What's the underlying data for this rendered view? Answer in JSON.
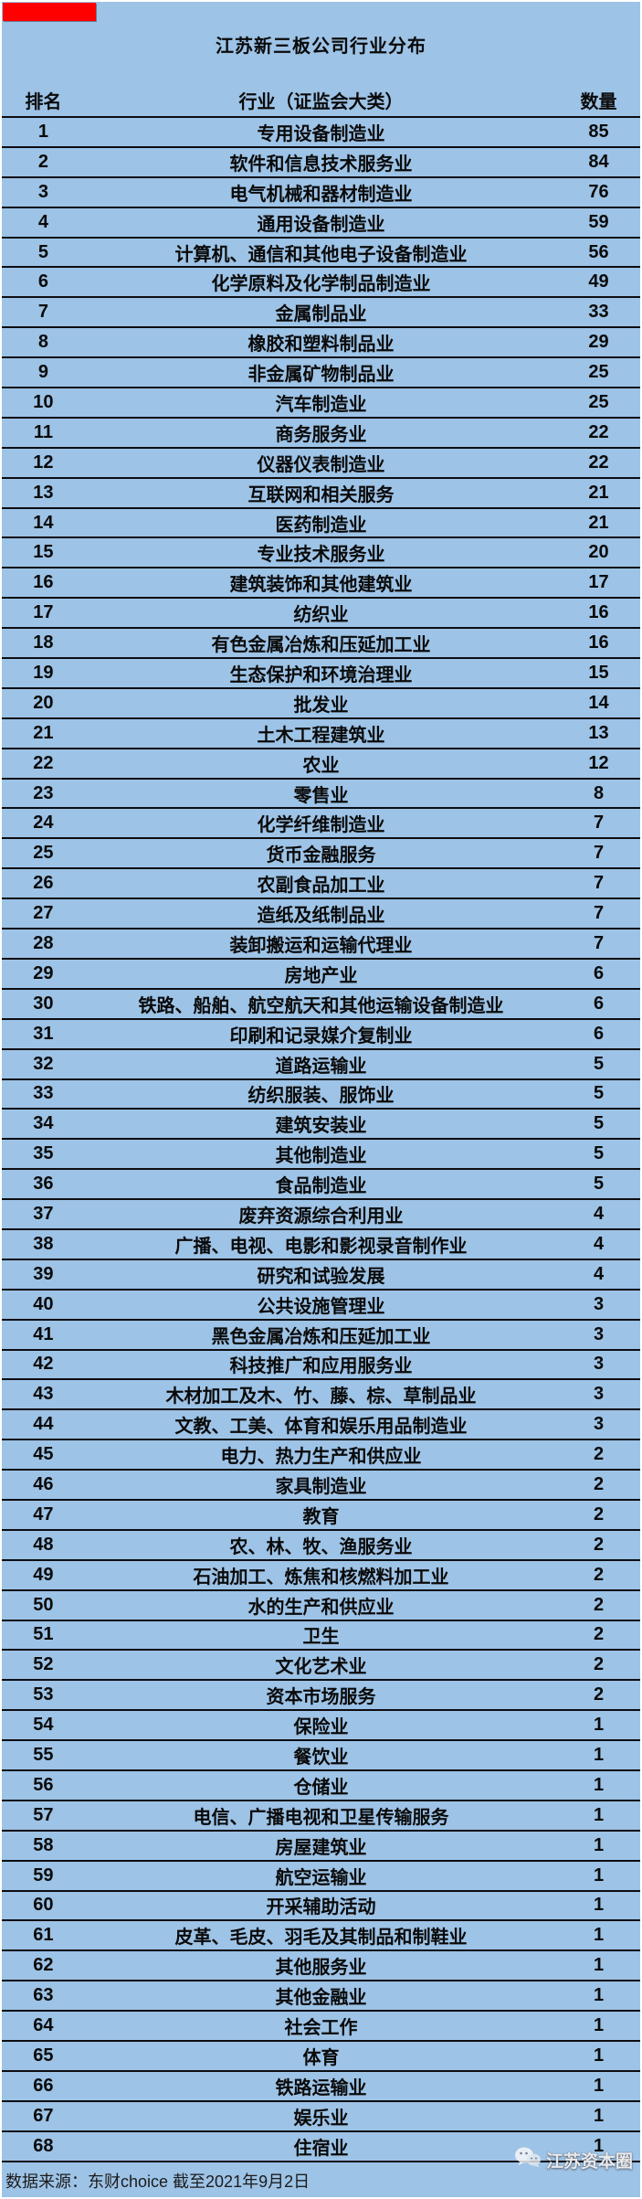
{
  "title": "江苏新三板公司行业分布",
  "colors": {
    "background": "#9DC3E6",
    "red_block": "#FF0000",
    "grid_line": "#0d0d12",
    "text": "#0a0a0a"
  },
  "footer": {
    "source_note": "数据来源：东财choice 截至2021年9月2日",
    "watermark_label": "江苏资本圈",
    "watermark_icon": "wechat-icon"
  },
  "chart_data": {
    "type": "table",
    "title": "江苏新三板公司行业分布",
    "headers": {
      "rank": "排名",
      "industry": "行业（证监会大类）",
      "count": "数量"
    },
    "rows": [
      {
        "rank": 1,
        "industry": "专用设备制造业",
        "count": 85
      },
      {
        "rank": 2,
        "industry": "软件和信息技术服务业",
        "count": 84
      },
      {
        "rank": 3,
        "industry": "电气机械和器材制造业",
        "count": 76
      },
      {
        "rank": 4,
        "industry": "通用设备制造业",
        "count": 59
      },
      {
        "rank": 5,
        "industry": "计算机、通信和其他电子设备制造业",
        "count": 56
      },
      {
        "rank": 6,
        "industry": "化学原料及化学制品制造业",
        "count": 49
      },
      {
        "rank": 7,
        "industry": "金属制品业",
        "count": 33
      },
      {
        "rank": 8,
        "industry": "橡胶和塑料制品业",
        "count": 29
      },
      {
        "rank": 9,
        "industry": "非金属矿物制品业",
        "count": 25
      },
      {
        "rank": 10,
        "industry": "汽车制造业",
        "count": 25
      },
      {
        "rank": 11,
        "industry": "商务服务业",
        "count": 22
      },
      {
        "rank": 12,
        "industry": "仪器仪表制造业",
        "count": 22
      },
      {
        "rank": 13,
        "industry": "互联网和相关服务",
        "count": 21
      },
      {
        "rank": 14,
        "industry": "医药制造业",
        "count": 21
      },
      {
        "rank": 15,
        "industry": "专业技术服务业",
        "count": 20
      },
      {
        "rank": 16,
        "industry": "建筑装饰和其他建筑业",
        "count": 17
      },
      {
        "rank": 17,
        "industry": "纺织业",
        "count": 16
      },
      {
        "rank": 18,
        "industry": "有色金属冶炼和压延加工业",
        "count": 16
      },
      {
        "rank": 19,
        "industry": "生态保护和环境治理业",
        "count": 15
      },
      {
        "rank": 20,
        "industry": "批发业",
        "count": 14
      },
      {
        "rank": 21,
        "industry": "土木工程建筑业",
        "count": 13
      },
      {
        "rank": 22,
        "industry": "农业",
        "count": 12
      },
      {
        "rank": 23,
        "industry": "零售业",
        "count": 8
      },
      {
        "rank": 24,
        "industry": "化学纤维制造业",
        "count": 7
      },
      {
        "rank": 25,
        "industry": "货币金融服务",
        "count": 7
      },
      {
        "rank": 26,
        "industry": "农副食品加工业",
        "count": 7
      },
      {
        "rank": 27,
        "industry": "造纸及纸制品业",
        "count": 7
      },
      {
        "rank": 28,
        "industry": "装卸搬运和运输代理业",
        "count": 7
      },
      {
        "rank": 29,
        "industry": "房地产业",
        "count": 6
      },
      {
        "rank": 30,
        "industry": "铁路、船舶、航空航天和其他运输设备制造业",
        "count": 6
      },
      {
        "rank": 31,
        "industry": "印刷和记录媒介复制业",
        "count": 6
      },
      {
        "rank": 32,
        "industry": "道路运输业",
        "count": 5
      },
      {
        "rank": 33,
        "industry": "纺织服装、服饰业",
        "count": 5
      },
      {
        "rank": 34,
        "industry": "建筑安装业",
        "count": 5
      },
      {
        "rank": 35,
        "industry": "其他制造业",
        "count": 5
      },
      {
        "rank": 36,
        "industry": "食品制造业",
        "count": 5
      },
      {
        "rank": 37,
        "industry": "废弃资源综合利用业",
        "count": 4
      },
      {
        "rank": 38,
        "industry": "广播、电视、电影和影视录音制作业",
        "count": 4
      },
      {
        "rank": 39,
        "industry": "研究和试验发展",
        "count": 4
      },
      {
        "rank": 40,
        "industry": "公共设施管理业",
        "count": 3
      },
      {
        "rank": 41,
        "industry": "黑色金属冶炼和压延加工业",
        "count": 3
      },
      {
        "rank": 42,
        "industry": "科技推广和应用服务业",
        "count": 3
      },
      {
        "rank": 43,
        "industry": "木材加工及木、竹、藤、棕、草制品业",
        "count": 3
      },
      {
        "rank": 44,
        "industry": "文教、工美、体育和娱乐用品制造业",
        "count": 3
      },
      {
        "rank": 45,
        "industry": "电力、热力生产和供应业",
        "count": 2
      },
      {
        "rank": 46,
        "industry": "家具制造业",
        "count": 2
      },
      {
        "rank": 47,
        "industry": "教育",
        "count": 2
      },
      {
        "rank": 48,
        "industry": "农、林、牧、渔服务业",
        "count": 2
      },
      {
        "rank": 49,
        "industry": "石油加工、炼焦和核燃料加工业",
        "count": 2
      },
      {
        "rank": 50,
        "industry": "水的生产和供应业",
        "count": 2
      },
      {
        "rank": 51,
        "industry": "卫生",
        "count": 2
      },
      {
        "rank": 52,
        "industry": "文化艺术业",
        "count": 2
      },
      {
        "rank": 53,
        "industry": "资本市场服务",
        "count": 2
      },
      {
        "rank": 54,
        "industry": "保险业",
        "count": 1
      },
      {
        "rank": 55,
        "industry": "餐饮业",
        "count": 1
      },
      {
        "rank": 56,
        "industry": "仓储业",
        "count": 1
      },
      {
        "rank": 57,
        "industry": "电信、广播电视和卫星传输服务",
        "count": 1
      },
      {
        "rank": 58,
        "industry": "房屋建筑业",
        "count": 1
      },
      {
        "rank": 59,
        "industry": "航空运输业",
        "count": 1
      },
      {
        "rank": 60,
        "industry": "开采辅助活动",
        "count": 1
      },
      {
        "rank": 61,
        "industry": "皮革、毛皮、羽毛及其制品和制鞋业",
        "count": 1
      },
      {
        "rank": 62,
        "industry": "其他服务业",
        "count": 1
      },
      {
        "rank": 63,
        "industry": "其他金融业",
        "count": 1
      },
      {
        "rank": 64,
        "industry": "社会工作",
        "count": 1
      },
      {
        "rank": 65,
        "industry": "体育",
        "count": 1
      },
      {
        "rank": 66,
        "industry": "铁路运输业",
        "count": 1
      },
      {
        "rank": 67,
        "industry": "娱乐业",
        "count": 1
      },
      {
        "rank": 68,
        "industry": "住宿业",
        "count": 1
      }
    ]
  }
}
